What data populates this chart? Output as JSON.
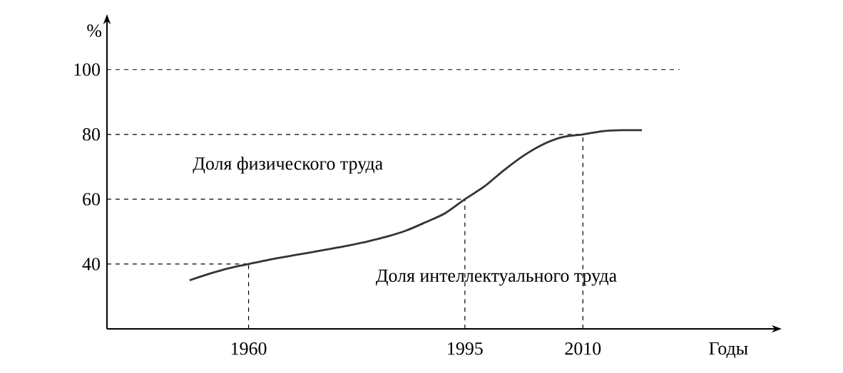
{
  "chart_data": {
    "type": "line",
    "xlabel": "Годы",
    "ylabel": "%",
    "categories": [
      null,
      null,
      null,
      "1960",
      null,
      null,
      null,
      null,
      null,
      null,
      null,
      null,
      null,
      null,
      "1995",
      null,
      null,
      null,
      null,
      null,
      "2010",
      null,
      null,
      null
    ],
    "series": [
      {
        "color": "#333333",
        "values": [
          35,
          37,
          38.7,
          40,
          41.3,
          42.4,
          43.4,
          44.5,
          45.6,
          46.9,
          48.4,
          50.3,
          52.9,
          55.7,
          60,
          64,
          69,
          73.5,
          77,
          79.2,
          80,
          81,
          81.3,
          81.3
        ]
      }
    ],
    "ylim": [
      20,
      114
    ],
    "yticks": [
      40,
      60,
      80,
      100
    ],
    "grid": false,
    "line_style": "solid",
    "marker": "none",
    "ref_lines": [
      {
        "axis": "y",
        "value": 100,
        "line_style": "dashed"
      },
      {
        "axis": "y",
        "value": 40,
        "line_style": "dashed"
      },
      {
        "axis": "y",
        "value": 60,
        "line_style": "dashed"
      },
      {
        "axis": "y",
        "value": 80,
        "line_style": "dashed"
      },
      {
        "axis": "x",
        "value": "1960",
        "line_style": "dashed"
      },
      {
        "axis": "x",
        "value": "1995",
        "line_style": "dashed"
      },
      {
        "axis": "x",
        "value": "2010",
        "line_style": "dashed"
      }
    ],
    "annotations": [
      "Доля физического труда",
      "Доля интеллектуального труда"
    ]
  }
}
